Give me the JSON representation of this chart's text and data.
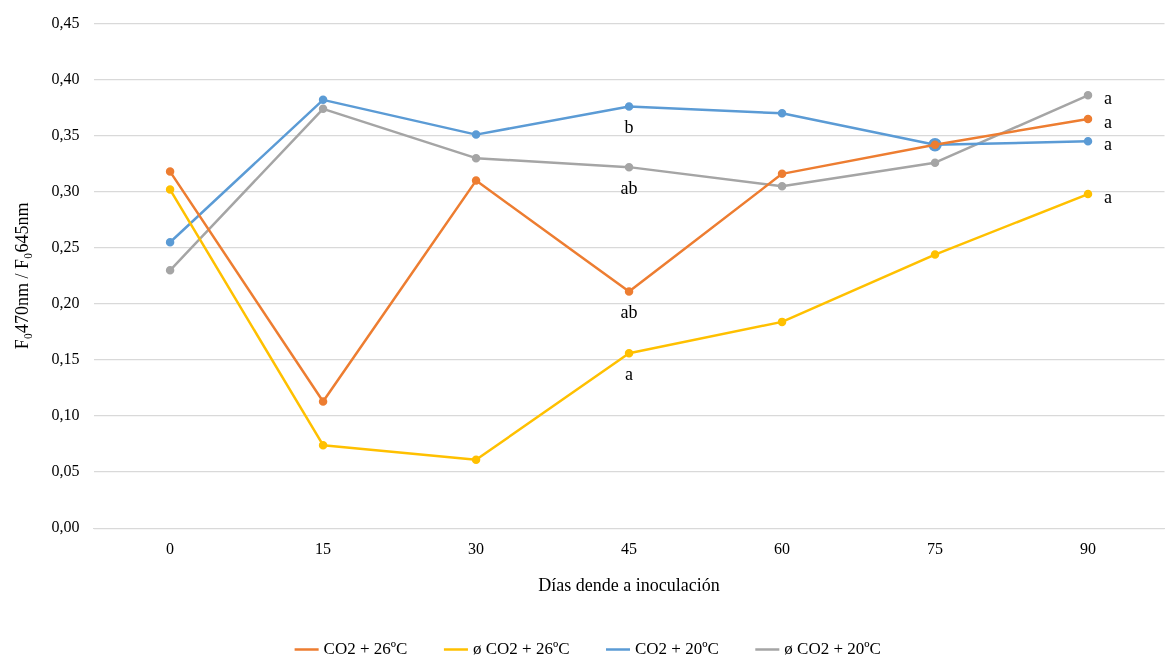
{
  "chart_data": {
    "type": "line",
    "xlabel": "Días dende a inoculación",
    "ylabel": "F₀470nm / F₀645nm",
    "categories": [
      "0",
      "15",
      "30",
      "45",
      "60",
      "75",
      "90"
    ],
    "series": [
      {
        "name": "CO2 + 26ºC",
        "color": "#ed7d31",
        "values": [
          0.318,
          0.113,
          0.31,
          0.211,
          0.316,
          0.342,
          0.365
        ]
      },
      {
        "name": "ø CO2 + 26ºC",
        "color": "#ffc000",
        "values": [
          0.302,
          0.074,
          0.061,
          0.156,
          0.184,
          0.244,
          0.298
        ]
      },
      {
        "name": "CO2 + 20ºC",
        "color": "#5b9bd5",
        "values": [
          0.255,
          0.382,
          0.351,
          0.376,
          0.37,
          0.342,
          0.345
        ]
      },
      {
        "name": "ø CO2 + 20ºC",
        "color": "#a5a5a5",
        "values": [
          0.23,
          0.374,
          0.33,
          0.322,
          0.305,
          0.326,
          0.386
        ]
      }
    ],
    "ylim": [
      0,
      0.45
    ],
    "yticks": [
      {
        "value": 0,
        "label": "0,00"
      },
      {
        "value": 0.05,
        "label": "0,05"
      },
      {
        "value": 0.1,
        "label": "0,10"
      },
      {
        "value": 0.15,
        "label": "0,15"
      },
      {
        "value": 0.2,
        "label": "0,20"
      },
      {
        "value": 0.25,
        "label": "0,25"
      },
      {
        "value": 0.3,
        "label": "0,30"
      },
      {
        "value": 0.35,
        "label": "0,35"
      },
      {
        "value": 0.4,
        "label": "0,40"
      },
      {
        "value": 0.45,
        "label": "0,45"
      }
    ],
    "annotations": [
      {
        "text": "b",
        "x": "45",
        "y": 0.376
      },
      {
        "text": "ab",
        "x": "45",
        "y": 0.322
      },
      {
        "text": "ab",
        "x": "45",
        "y": 0.211
      },
      {
        "text": "a",
        "x": "45",
        "y": 0.156
      },
      {
        "text": "a",
        "x": "90",
        "y": 0.386
      },
      {
        "text": "a",
        "x": "90",
        "y": 0.365
      },
      {
        "text": "a",
        "x": "90",
        "y": 0.345
      },
      {
        "text": "a",
        "x": "90",
        "y": 0.298
      }
    ],
    "grid": "y",
    "legend": "bottom",
    "marker": "circle",
    "line_style": "solid"
  }
}
